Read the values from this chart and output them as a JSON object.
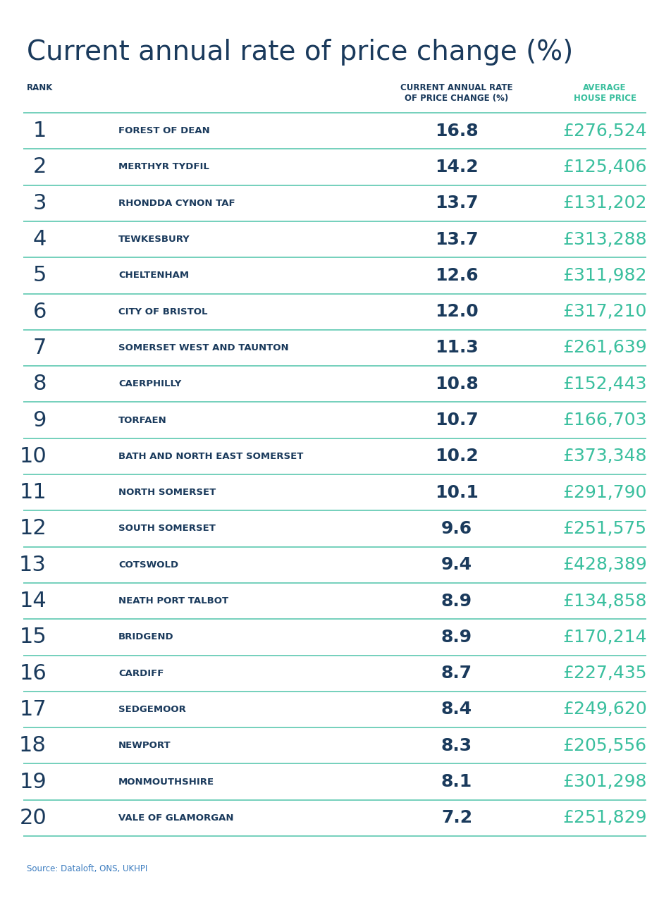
{
  "title": "Current annual rate of price change (%)",
  "title_color": "#1a3a5c",
  "background_color": "#ffffff",
  "col_header_rank": "RANK",
  "col_header_rate": "CURRENT ANNUAL RATE\nOF PRICE CHANGE (%)",
  "col_header_price": "AVERAGE\nHOUSE PRICE",
  "col_header_rate_color": "#1a3a5c",
  "col_header_price_color": "#3abf9e",
  "source_text": "Source: Dataloft, ONS, UKHPI",
  "source_color": "#3a7bbf",
  "rows": [
    {
      "rank": "1",
      "area": "FOREST OF DEAN",
      "rate": "16.8",
      "price": "£276,524"
    },
    {
      "rank": "2",
      "area": "MERTHYR TYDFIL",
      "rate": "14.2",
      "price": "£125,406"
    },
    {
      "rank": "3",
      "area": "RHONDDA CYNON TAF",
      "rate": "13.7",
      "price": "£131,202"
    },
    {
      "rank": "4",
      "area": "TEWKESBURY",
      "rate": "13.7",
      "price": "£313,288"
    },
    {
      "rank": "5",
      "area": "CHELTENHAM",
      "rate": "12.6",
      "price": "£311,982"
    },
    {
      "rank": "6",
      "area": "CITY OF BRISTOL",
      "rate": "12.0",
      "price": "£317,210"
    },
    {
      "rank": "7",
      "area": "SOMERSET WEST AND TAUNTON",
      "rate": "11.3",
      "price": "£261,639"
    },
    {
      "rank": "8",
      "area": "CAERPHILLY",
      "rate": "10.8",
      "price": "£152,443"
    },
    {
      "rank": "9",
      "area": "TORFAEN",
      "rate": "10.7",
      "price": "£166,703"
    },
    {
      "rank": "10",
      "area": "BATH AND NORTH EAST SOMERSET",
      "rate": "10.2",
      "price": "£373,348"
    },
    {
      "rank": "11",
      "area": "NORTH SOMERSET",
      "rate": "10.1",
      "price": "£291,790"
    },
    {
      "rank": "12",
      "area": "SOUTH SOMERSET",
      "rate": "9.6",
      "price": "£251,575"
    },
    {
      "rank": "13",
      "area": "COTSWOLD",
      "rate": "9.4",
      "price": "£428,389"
    },
    {
      "rank": "14",
      "area": "NEATH PORT TALBOT",
      "rate": "8.9",
      "price": "£134,858"
    },
    {
      "rank": "15",
      "area": "BRIDGEND",
      "rate": "8.9",
      "price": "£170,214"
    },
    {
      "rank": "16",
      "area": "CARDIFF",
      "rate": "8.7",
      "price": "£227,435"
    },
    {
      "rank": "17",
      "area": "SEDGEMOOR",
      "rate": "8.4",
      "price": "£249,620"
    },
    {
      "rank": "18",
      "area": "NEWPORT",
      "rate": "8.3",
      "price": "£205,556"
    },
    {
      "rank": "19",
      "area": "MONMOUTHSHIRE",
      "rate": "8.1",
      "price": "£301,298"
    },
    {
      "rank": "20",
      "area": "VALE OF GLAMORGAN",
      "rate": "7.2",
      "price": "£251,829"
    }
  ],
  "rank_color": "#1a3a5c",
  "area_color": "#1a3a5c",
  "rate_color": "#1a3a5c",
  "price_color": "#3abf9e",
  "divider_color": "#5cc8b0",
  "fig_width": 9.52,
  "fig_height": 12.81,
  "dpi": 100
}
